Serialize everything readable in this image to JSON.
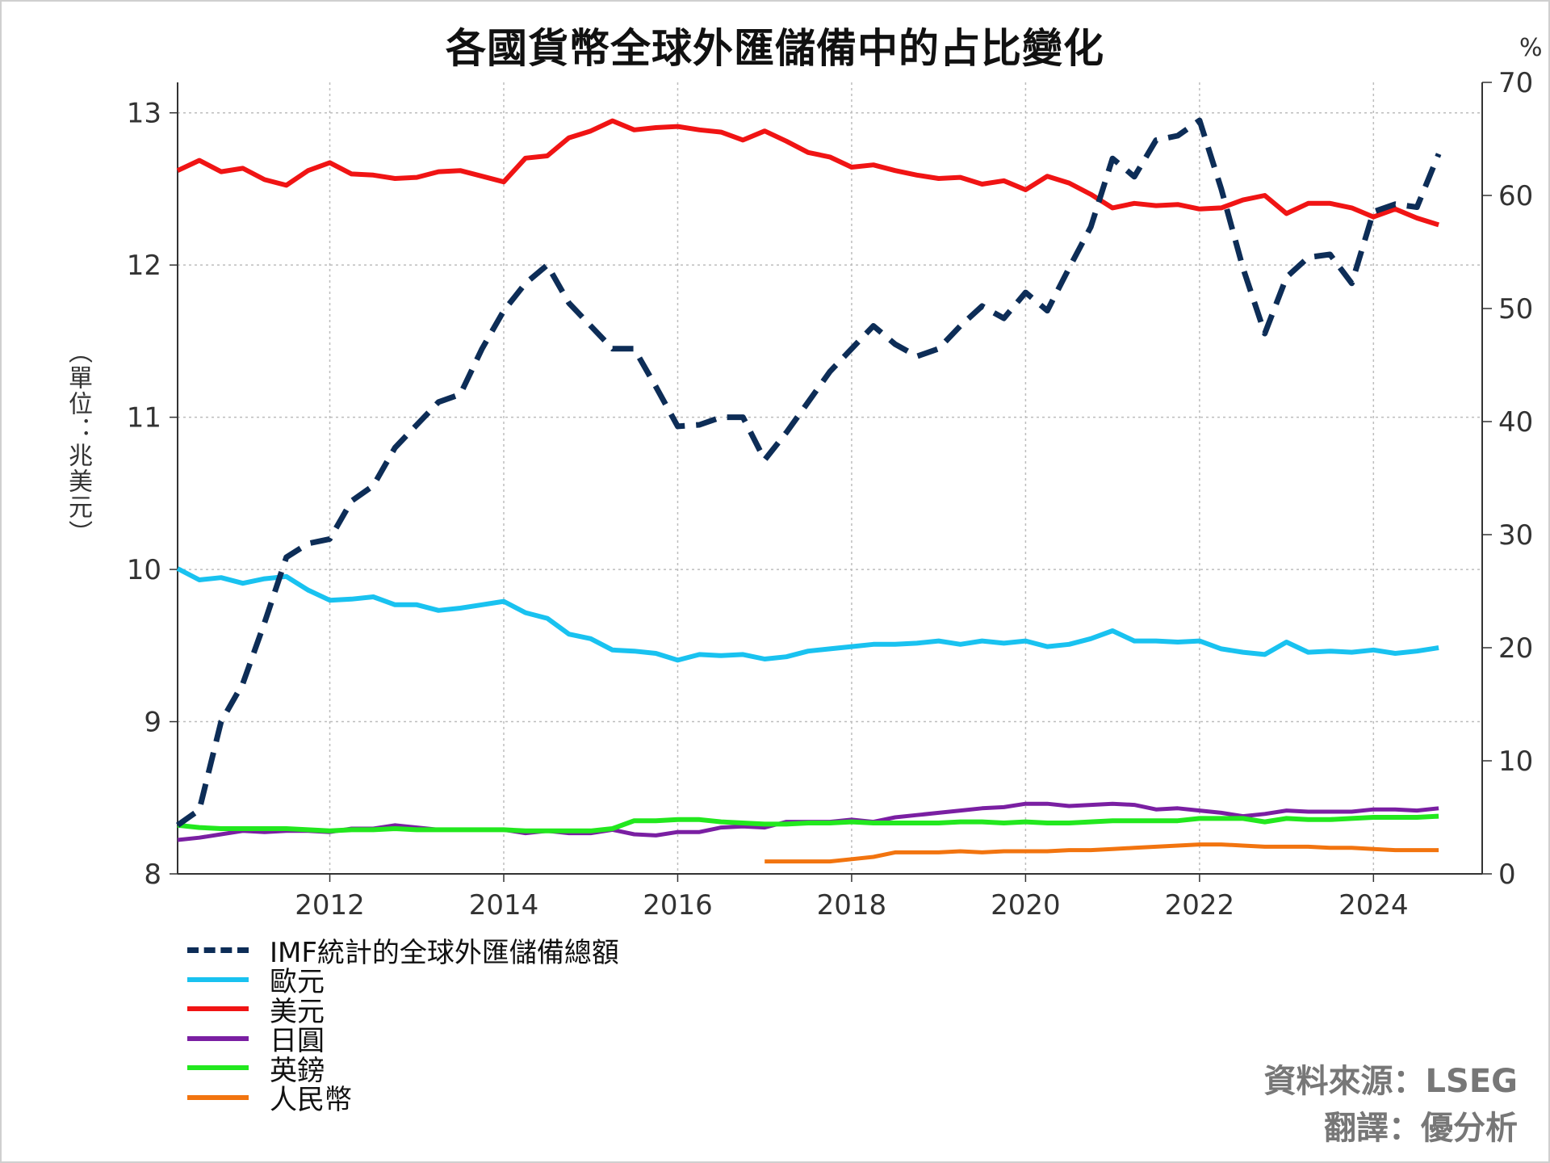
{
  "chart_data": {
    "type": "line",
    "title": "各國貨幣全球外匯儲備中的占比變化",
    "ylabel_left": "（單位：兆美元）",
    "ylabel_right": "%",
    "x_ticks": [
      "2012",
      "2014",
      "2016",
      "2018",
      "2020",
      "2022",
      "2024"
    ],
    "y_left_ticks": [
      "8",
      "9",
      "10",
      "11",
      "12",
      "13"
    ],
    "y_right_ticks": [
      "0",
      "10",
      "20",
      "30",
      "40",
      "50",
      "60",
      "70"
    ],
    "xlim": [
      2010.25,
      2025.25
    ],
    "ylim_left": [
      8,
      13.2
    ],
    "ylim_right": [
      0,
      70
    ],
    "grid": true,
    "legend_position": "bottom-left, below plot",
    "series": [
      {
        "name": "IMF統計的全球外匯儲備總額",
        "axis": "left",
        "color": "#0d2d57",
        "dashed": true,
        "x": [
          2010.25,
          2010.5,
          2010.75,
          2011.0,
          2011.25,
          2011.5,
          2011.75,
          2012.0,
          2012.25,
          2012.5,
          2012.75,
          2013.0,
          2013.25,
          2013.5,
          2013.75,
          2014.0,
          2014.25,
          2014.5,
          2014.75,
          2015.0,
          2015.25,
          2015.5,
          2015.75,
          2016.0,
          2016.25,
          2016.5,
          2016.75,
          2017.0,
          2017.25,
          2017.5,
          2017.75,
          2018.0,
          2018.25,
          2018.5,
          2018.75,
          2019.0,
          2019.25,
          2019.5,
          2019.75,
          2020.0,
          2020.25,
          2020.5,
          2020.75,
          2021.0,
          2021.25,
          2021.5,
          2021.75,
          2022.0,
          2022.25,
          2022.5,
          2022.75,
          2023.0,
          2023.25,
          2023.5,
          2023.75,
          2024.0,
          2024.25,
          2024.5,
          2024.75
        ],
        "values": [
          8.32,
          8.42,
          9.0,
          9.25,
          9.65,
          10.08,
          10.17,
          10.2,
          10.45,
          10.55,
          10.8,
          10.95,
          11.1,
          11.15,
          11.45,
          11.7,
          11.88,
          12.0,
          11.75,
          11.6,
          11.45,
          11.45,
          11.2,
          10.94,
          10.95,
          11.0,
          11.0,
          10.72,
          10.9,
          11.1,
          11.3,
          11.45,
          11.6,
          11.48,
          11.4,
          11.45,
          11.6,
          11.73,
          11.65,
          11.82,
          11.7,
          11.98,
          12.25,
          12.7,
          12.58,
          12.82,
          12.85,
          12.95,
          12.5,
          11.98,
          11.55,
          11.92,
          12.05,
          12.07,
          11.88,
          12.35,
          12.4,
          12.38,
          12.73
        ]
      },
      {
        "name": "歐元",
        "axis": "right",
        "color": "#19c2f0",
        "dashed": false,
        "x": [
          2010.25,
          2010.5,
          2010.75,
          2011.0,
          2011.25,
          2011.5,
          2011.75,
          2012.0,
          2012.25,
          2012.5,
          2012.75,
          2013.0,
          2013.25,
          2013.5,
          2013.75,
          2014.0,
          2014.25,
          2014.5,
          2014.75,
          2015.0,
          2015.25,
          2015.5,
          2015.75,
          2016.0,
          2016.25,
          2016.5,
          2016.75,
          2017.0,
          2017.25,
          2017.5,
          2017.75,
          2018.0,
          2018.25,
          2018.5,
          2018.75,
          2019.0,
          2019.25,
          2019.5,
          2019.75,
          2020.0,
          2020.25,
          2020.5,
          2020.75,
          2021.0,
          2021.25,
          2021.5,
          2021.75,
          2022.0,
          2022.25,
          2022.5,
          2022.75,
          2023.0,
          2023.25,
          2023.5,
          2023.75,
          2024.0,
          2024.25,
          2024.5,
          2024.75
        ],
        "values": [
          27.0,
          26.0,
          26.2,
          25.7,
          26.1,
          26.3,
          25.1,
          24.2,
          24.3,
          24.5,
          23.8,
          23.8,
          23.3,
          23.5,
          23.8,
          24.1,
          23.1,
          22.6,
          21.2,
          20.8,
          19.8,
          19.7,
          19.5,
          18.9,
          19.4,
          19.3,
          19.4,
          19.0,
          19.2,
          19.7,
          19.9,
          20.1,
          20.3,
          20.3,
          20.4,
          20.6,
          20.3,
          20.6,
          20.4,
          20.6,
          20.1,
          20.3,
          20.8,
          21.5,
          20.6,
          20.6,
          20.5,
          20.6,
          19.9,
          19.6,
          19.4,
          20.5,
          19.6,
          19.7,
          19.6,
          19.8,
          19.5,
          19.7,
          20.0
        ]
      },
      {
        "name": "美元",
        "axis": "right",
        "color": "#f01414",
        "dashed": false,
        "x": [
          2010.25,
          2010.5,
          2010.75,
          2011.0,
          2011.25,
          2011.5,
          2011.75,
          2012.0,
          2012.25,
          2012.5,
          2012.75,
          2013.0,
          2013.25,
          2013.5,
          2013.75,
          2014.0,
          2014.25,
          2014.5,
          2014.75,
          2015.0,
          2015.25,
          2015.5,
          2015.75,
          2016.0,
          2016.25,
          2016.5,
          2016.75,
          2017.0,
          2017.25,
          2017.5,
          2017.75,
          2018.0,
          2018.25,
          2018.5,
          2018.75,
          2019.0,
          2019.25,
          2019.5,
          2019.75,
          2020.0,
          2020.25,
          2020.5,
          2020.75,
          2021.0,
          2021.25,
          2021.5,
          2021.75,
          2022.0,
          2022.25,
          2022.5,
          2022.75,
          2023.0,
          2023.25,
          2023.5,
          2023.75,
          2024.0,
          2024.25,
          2024.5,
          2024.75
        ],
        "values": [
          62.2,
          63.1,
          62.1,
          62.4,
          61.4,
          60.9,
          62.2,
          62.9,
          61.9,
          61.8,
          61.5,
          61.6,
          62.1,
          62.2,
          61.7,
          61.2,
          63.3,
          63.5,
          65.1,
          65.7,
          66.6,
          65.8,
          66.0,
          66.1,
          65.8,
          65.6,
          64.9,
          65.7,
          64.8,
          63.8,
          63.4,
          62.5,
          62.7,
          62.2,
          61.8,
          61.5,
          61.6,
          61.0,
          61.3,
          60.5,
          61.7,
          61.1,
          60.1,
          58.9,
          59.3,
          59.1,
          59.2,
          58.8,
          58.9,
          59.6,
          60.0,
          58.4,
          59.3,
          59.3,
          58.9,
          58.1,
          58.8,
          58.0,
          57.4
        ]
      },
      {
        "name": "日圓",
        "axis": "right",
        "color": "#7a1fa2",
        "dashed": false,
        "x": [
          2010.25,
          2010.5,
          2010.75,
          2011.0,
          2011.25,
          2011.5,
          2011.75,
          2012.0,
          2012.25,
          2012.5,
          2012.75,
          2013.0,
          2013.25,
          2013.5,
          2013.75,
          2014.0,
          2014.25,
          2014.5,
          2014.75,
          2015.0,
          2015.25,
          2015.5,
          2015.75,
          2016.0,
          2016.25,
          2016.5,
          2016.75,
          2017.0,
          2017.25,
          2017.5,
          2017.75,
          2018.0,
          2018.25,
          2018.5,
          2018.75,
          2019.0,
          2019.25,
          2019.5,
          2019.75,
          2020.0,
          2020.25,
          2020.5,
          2020.75,
          2021.0,
          2021.25,
          2021.5,
          2021.75,
          2022.0,
          2022.25,
          2022.5,
          2022.75,
          2023.0,
          2023.25,
          2023.5,
          2023.75,
          2024.0,
          2024.25,
          2024.5,
          2024.75
        ],
        "values": [
          3.0,
          3.2,
          3.5,
          3.8,
          3.7,
          3.8,
          3.8,
          3.7,
          4.0,
          4.0,
          4.3,
          4.1,
          3.9,
          3.9,
          3.9,
          3.9,
          3.6,
          3.8,
          3.6,
          3.6,
          3.9,
          3.5,
          3.4,
          3.7,
          3.7,
          4.1,
          4.2,
          4.1,
          4.6,
          4.6,
          4.6,
          4.8,
          4.6,
          5.0,
          5.2,
          5.4,
          5.6,
          5.8,
          5.9,
          6.2,
          6.2,
          6.0,
          6.1,
          6.2,
          6.1,
          5.7,
          5.8,
          5.6,
          5.4,
          5.1,
          5.3,
          5.6,
          5.5,
          5.5,
          5.5,
          5.7,
          5.7,
          5.6,
          5.8
        ]
      },
      {
        "name": "英鎊",
        "axis": "right",
        "color": "#22e81e",
        "dashed": false,
        "x": [
          2010.25,
          2010.5,
          2010.75,
          2011.0,
          2011.25,
          2011.5,
          2011.75,
          2012.0,
          2012.25,
          2012.5,
          2012.75,
          2013.0,
          2013.25,
          2013.5,
          2013.75,
          2014.0,
          2014.25,
          2014.5,
          2014.75,
          2015.0,
          2015.25,
          2015.5,
          2015.75,
          2016.0,
          2016.25,
          2016.5,
          2016.75,
          2017.0,
          2017.25,
          2017.5,
          2017.75,
          2018.0,
          2018.25,
          2018.5,
          2018.75,
          2019.0,
          2019.25,
          2019.5,
          2019.75,
          2020.0,
          2020.25,
          2020.5,
          2020.75,
          2021.0,
          2021.25,
          2021.5,
          2021.75,
          2022.0,
          2022.25,
          2022.5,
          2022.75,
          2023.0,
          2023.25,
          2023.5,
          2023.75,
          2024.0,
          2024.25,
          2024.5,
          2024.75
        ],
        "values": [
          4.3,
          4.1,
          4.0,
          4.0,
          4.0,
          4.0,
          3.9,
          3.8,
          3.9,
          3.9,
          4.0,
          3.9,
          3.9,
          3.9,
          3.9,
          3.9,
          3.8,
          3.8,
          3.8,
          3.8,
          4.0,
          4.7,
          4.7,
          4.8,
          4.8,
          4.6,
          4.5,
          4.4,
          4.4,
          4.5,
          4.5,
          4.6,
          4.5,
          4.5,
          4.5,
          4.5,
          4.6,
          4.6,
          4.5,
          4.6,
          4.5,
          4.5,
          4.6,
          4.7,
          4.7,
          4.7,
          4.7,
          4.9,
          4.9,
          4.9,
          4.6,
          4.9,
          4.8,
          4.8,
          4.9,
          5.0,
          5.0,
          5.0,
          5.1
        ]
      },
      {
        "name": "人民幣",
        "axis": "right",
        "color": "#f2740f",
        "dashed": false,
        "x": [
          2017.0,
          2017.25,
          2017.5,
          2017.75,
          2018.0,
          2018.25,
          2018.5,
          2018.75,
          2019.0,
          2019.25,
          2019.5,
          2019.75,
          2020.0,
          2020.25,
          2020.5,
          2020.75,
          2021.0,
          2021.25,
          2021.5,
          2021.75,
          2022.0,
          2022.25,
          2022.5,
          2022.75,
          2023.0,
          2023.25,
          2023.5,
          2023.75,
          2024.0,
          2024.25,
          2024.5,
          2024.75
        ],
        "values": [
          1.1,
          1.1,
          1.1,
          1.1,
          1.3,
          1.5,
          1.9,
          1.9,
          1.9,
          2.0,
          1.9,
          2.0,
          2.0,
          2.0,
          2.1,
          2.1,
          2.2,
          2.3,
          2.4,
          2.5,
          2.6,
          2.6,
          2.5,
          2.4,
          2.4,
          2.4,
          2.3,
          2.3,
          2.2,
          2.1,
          2.1,
          2.1
        ]
      }
    ]
  },
  "source_text": "資料來源：LSEG",
  "translator_text": "翻譯：優分析"
}
